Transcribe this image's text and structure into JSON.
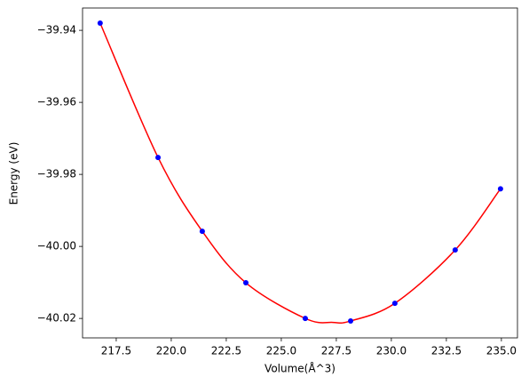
{
  "chart_data": {
    "type": "scatter",
    "x_label": "Volume(Å^3)",
    "y_label": "Energy (eV)",
    "series": [
      {
        "type": "line",
        "color": "#ff0000",
        "x": [
          216.77,
          219.4,
          221.41,
          223.39,
          226.09,
          227.34,
          228.15,
          230.16,
          232.9,
          234.96
        ],
        "values": [
          -39.938,
          -39.9753,
          -39.9958,
          -40.0101,
          -40.02,
          -40.0211,
          -40.0207,
          -40.0158,
          -40.001,
          -39.984
        ]
      },
      {
        "type": "scatter",
        "color": "#0000ff",
        "x": [
          216.77,
          219.4,
          221.41,
          223.39,
          226.09,
          228.15,
          230.16,
          232.9,
          234.96
        ],
        "values": [
          -39.938,
          -39.9753,
          -39.9958,
          -40.0101,
          -40.02,
          -40.0207,
          -40.0158,
          -40.001,
          -39.984
        ]
      }
    ],
    "xlim": [
      215.97,
      235.73
    ],
    "ylim": [
      -40.0254,
      -39.9338
    ],
    "xticks": [
      {
        "value": 217.5,
        "label": "217.5"
      },
      {
        "value": 220,
        "label": "220.0"
      },
      {
        "value": 222.5,
        "label": "222.5"
      },
      {
        "value": 225,
        "label": "225.0"
      },
      {
        "value": 227.5,
        "label": "227.5"
      },
      {
        "value": 230,
        "label": "230.0"
      },
      {
        "value": 232.5,
        "label": "232.5"
      },
      {
        "value": 235,
        "label": "235.0"
      }
    ],
    "yticks": [
      {
        "value": -39.94,
        "label": "−39.94"
      },
      {
        "value": -39.96,
        "label": "−39.96"
      },
      {
        "value": -39.98,
        "label": "−39.98"
      },
      {
        "value": -40,
        "label": "−40.00"
      },
      {
        "value": -40.02,
        "label": "−40.02"
      }
    ]
  }
}
